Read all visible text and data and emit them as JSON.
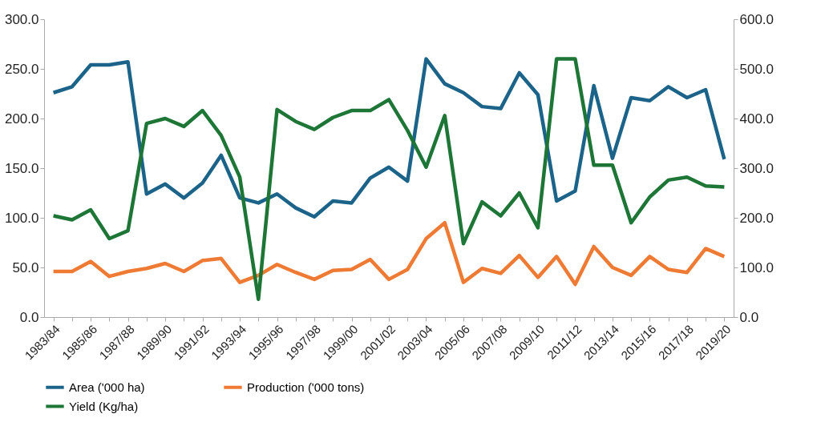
{
  "chart_data": {
    "type": "line",
    "categories": [
      "1983/84",
      null,
      "1985/86",
      null,
      "1987/88",
      null,
      "1989/90",
      null,
      "1991/92",
      null,
      "1993/94",
      null,
      "1995/96",
      null,
      "1997/98",
      null,
      "1999/00",
      null,
      "2001/02",
      null,
      "2003/04",
      null,
      "2005/06",
      null,
      "2007/08",
      null,
      "2009/10",
      null,
      "2011/12",
      null,
      "2013/14",
      null,
      "2015/16",
      null,
      "2017/18",
      null,
      "2019/20"
    ],
    "series": [
      {
        "name": "Area ('000 ha)",
        "color": "#1b6388",
        "values": [
          226,
          232,
          254,
          254,
          257,
          124,
          134,
          120,
          135,
          163,
          120,
          115,
          124,
          110,
          101,
          117,
          115,
          140,
          151,
          137,
          260,
          235,
          226,
          212,
          210,
          246,
          224,
          117,
          127,
          233,
          160,
          221,
          218,
          232,
          221,
          229,
          159
        ]
      },
      {
        "name": "Production ('000 tons)",
        "color": "#ee7a33",
        "values": [
          46,
          46,
          56,
          41,
          46,
          49,
          54,
          46,
          57,
          59,
          35,
          42,
          53,
          45,
          38,
          47,
          48,
          58,
          38,
          48,
          79,
          95,
          35,
          49,
          44,
          62,
          40,
          61,
          33,
          71,
          50,
          42,
          61,
          48,
          45,
          69,
          61
        ]
      },
      {
        "name": "Yield (Kg/ha)",
        "color": "#1d7536",
        "axis": "y2",
        "values": [
          204,
          196,
          216,
          158,
          174,
          390,
          400,
          384,
          416,
          366,
          282,
          36,
          418,
          394,
          378,
          402,
          416,
          416,
          438,
          376,
          302,
          406,
          148,
          232,
          204,
          250,
          180,
          520,
          520,
          306,
          306,
          190,
          242,
          276,
          282,
          264,
          262
        ]
      }
    ],
    "ylim": [
      0,
      300
    ],
    "yticks": [
      {
        "value": 0,
        "label": "0.0"
      },
      {
        "value": 50,
        "label": "50.0"
      },
      {
        "value": 100,
        "label": "100.0"
      },
      {
        "value": 150,
        "label": "150.0"
      },
      {
        "value": 200,
        "label": "200.0"
      },
      {
        "value": 250,
        "label": "250.0"
      },
      {
        "value": 300,
        "label": "300.0"
      }
    ],
    "y2lim": [
      0,
      600
    ],
    "y2ticks": [
      {
        "value": 0,
        "label": "0.0"
      },
      {
        "value": 100,
        "label": "100.0"
      },
      {
        "value": 200,
        "label": "200.0"
      },
      {
        "value": 300,
        "label": "300.0"
      },
      {
        "value": 400,
        "label": "400.0"
      },
      {
        "value": 500,
        "label": "500.0"
      },
      {
        "value": 600,
        "label": "600.0"
      }
    ],
    "grid": false,
    "legend": "bottom",
    "line_style": "solid"
  }
}
